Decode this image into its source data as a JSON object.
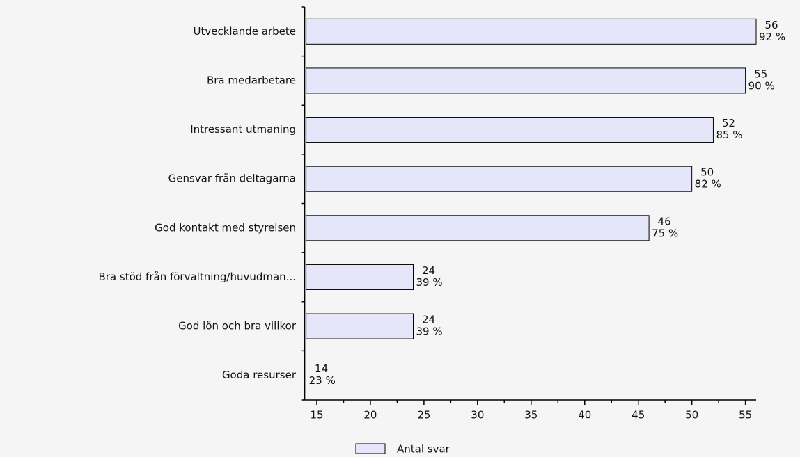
{
  "chart_data": {
    "type": "barh",
    "categories": [
      "Utvecklande arbete",
      "Bra medarbetare",
      "Intressant utmaning",
      "Gensvar från deltagarna",
      "God kontakt med styrelsen",
      "Bra stöd från  förvaltning/huvudman...",
      "God lön och bra villkor",
      "Goda resurser"
    ],
    "series": [
      {
        "name": "Antal svar",
        "color": "#e6e6fa",
        "values": [
          56,
          55,
          52,
          50,
          46,
          24,
          24,
          14
        ],
        "percent_labels": [
          "92 %",
          "90 %",
          "85 %",
          "82 %",
          "75 %",
          "39 %",
          "39 %",
          "23 %"
        ]
      }
    ],
    "xlim": [
      14,
      56
    ],
    "xticks": [
      15,
      20,
      25,
      30,
      35,
      40,
      45,
      50,
      55
    ]
  }
}
